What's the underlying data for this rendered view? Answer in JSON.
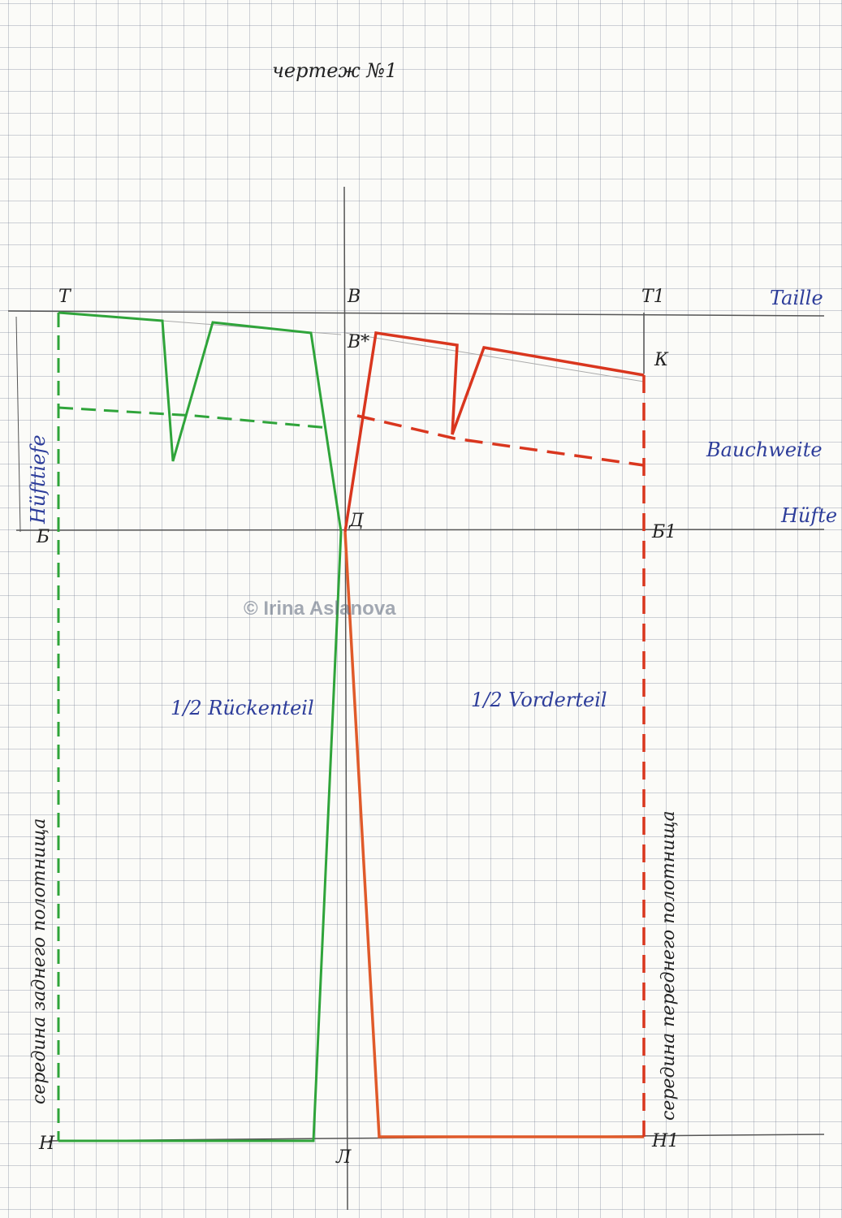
{
  "title": "чертеж №1",
  "points": {
    "t": "Т",
    "v": "В",
    "t1": "Т1",
    "v_star": "В*",
    "k": "К",
    "b": "Б",
    "d": "Д",
    "b1": "Б1",
    "n": "Н",
    "l": "Л",
    "n1": "Н1"
  },
  "lines": {
    "waist": "Taille",
    "belly": "Bauchweite",
    "hip": "Hüfte",
    "hip_depth": "Hüfttiefe"
  },
  "sections": {
    "back": "1/2 Rückenteil",
    "front": "1/2 Vorderteil",
    "back_center": "середина заднего полотнища",
    "front_center": "середина переднего полотнища"
  },
  "watermark": "© Irina Aslanova"
}
